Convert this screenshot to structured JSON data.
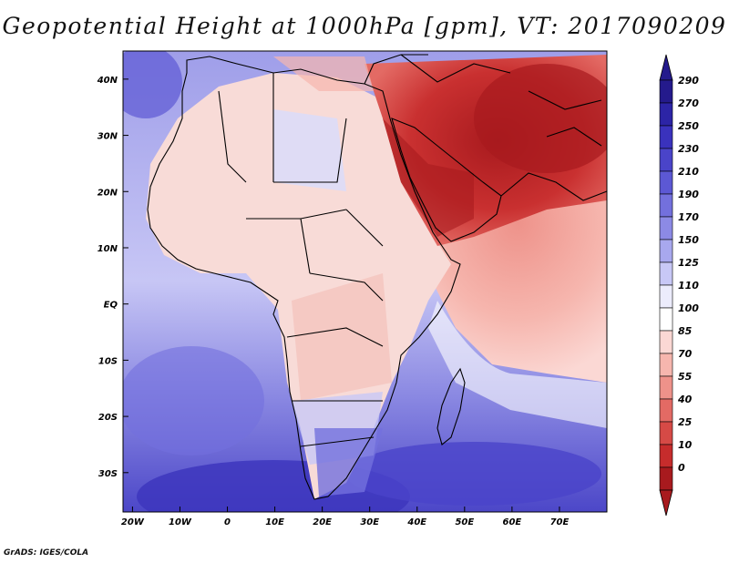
{
  "title": "Geopotential Height at 1000hPa [gpm], VT: 2017090209",
  "footer": "GrADS: IGES/COLA",
  "map": {
    "lat_ticks": [
      "40N",
      "30N",
      "20N",
      "10N",
      "EQ",
      "10S",
      "20S",
      "30S"
    ],
    "lon_ticks": [
      "20W",
      "10W",
      "0",
      "10E",
      "20E",
      "30E",
      "40E",
      "50E",
      "60E",
      "70E"
    ],
    "extent": {
      "lon_min": -22,
      "lon_max": 80,
      "lat_min": -37,
      "lat_max": 45
    }
  },
  "colorbar": {
    "levels": [
      "290",
      "270",
      "250",
      "230",
      "210",
      "190",
      "170",
      "150",
      "125",
      "110",
      "100",
      "85",
      "70",
      "55",
      "40",
      "25",
      "10",
      "0"
    ],
    "colors": [
      "#241a8c",
      "#2c24a6",
      "#3a32bd",
      "#4a44c9",
      "#5c58d4",
      "#7370dd",
      "#8c8ae5",
      "#a8a8ee",
      "#c8c8f6",
      "#ececfc",
      "#ffffff",
      "#fbd8d4",
      "#f6b6ae",
      "#ee928a",
      "#e36a64",
      "#d64a46",
      "#c62c2c",
      "#a81a1e"
    ]
  },
  "colors": {
    "ocean_south": "#5a55d0",
    "ocean_mid": "#a6a4ec",
    "land_north": "#f7d4d0",
    "arabia": "#b82424",
    "coast": "#000000"
  }
}
